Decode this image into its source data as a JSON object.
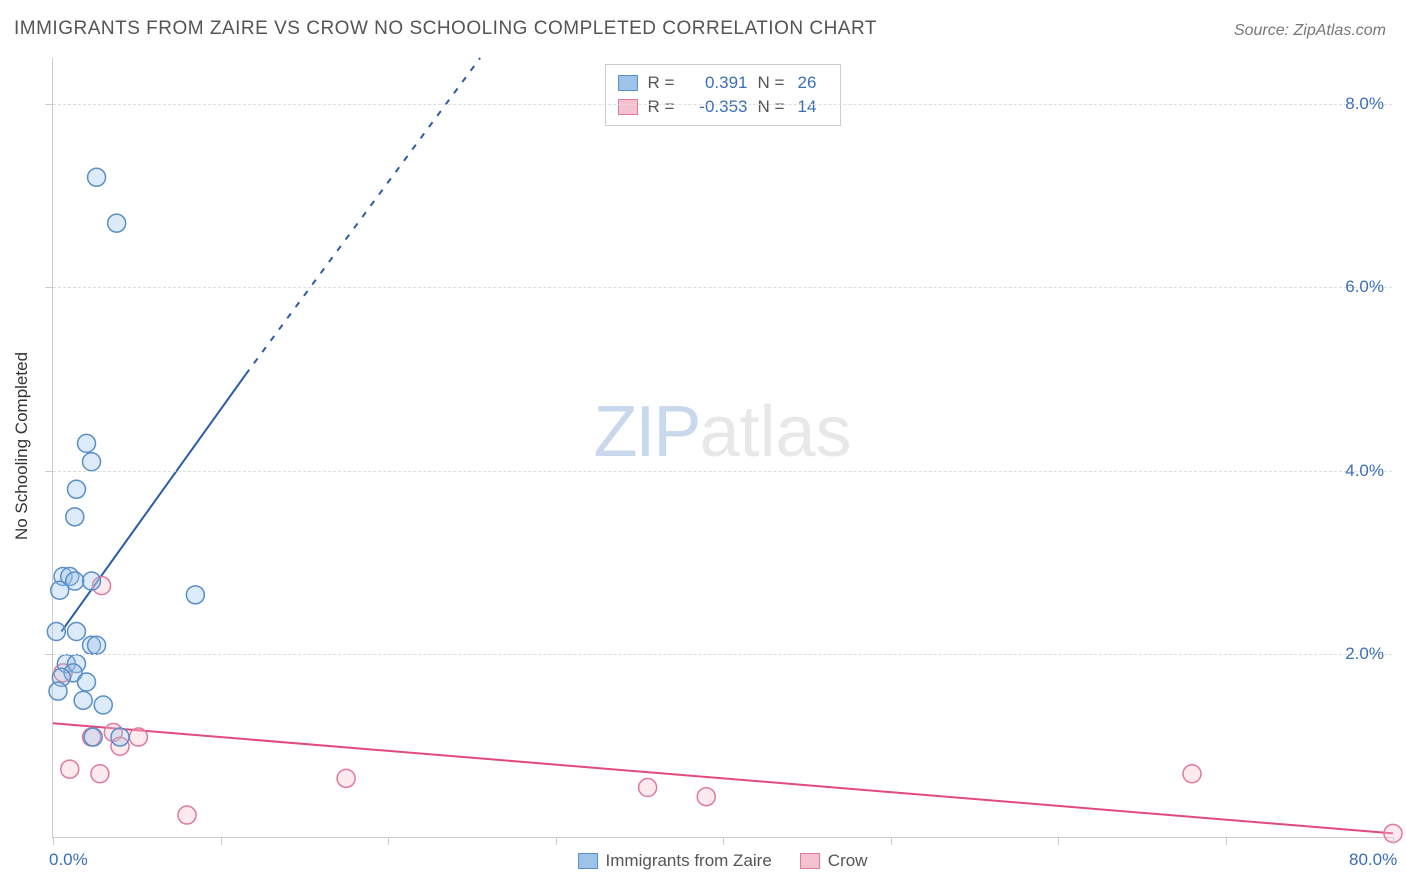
{
  "title": "IMMIGRANTS FROM ZAIRE VS CROW NO SCHOOLING COMPLETED CORRELATION CHART",
  "source": "Source: ZipAtlas.com",
  "ylabel": "No Schooling Completed",
  "watermark_zip": "ZIP",
  "watermark_atlas": "atlas",
  "chart": {
    "type": "scatter",
    "background_color": "#ffffff",
    "grid_color": "#dddddd",
    "axis_color": "#cccccc",
    "tick_label_color": "#3b6fb5",
    "tick_fontsize": 17,
    "title_fontsize": 19,
    "title_color": "#555555",
    "xlim": [
      0,
      80
    ],
    "ylim": [
      0,
      8.5
    ],
    "x_ticks": [
      0,
      10,
      20,
      30,
      40,
      50,
      60,
      70,
      80
    ],
    "x_tick_labels": {
      "0": "0.0%",
      "80": "80.0%"
    },
    "y_ticks": [
      2,
      4,
      6,
      8
    ],
    "y_tick_labels": {
      "2": "2.0%",
      "4": "4.0%",
      "6": "6.0%",
      "8": "8.0%"
    },
    "marker_radius": 9,
    "marker_stroke_width": 1.5,
    "marker_fill_opacity": 0.35,
    "line_width": 2
  },
  "series": {
    "blue": {
      "label": "Immigrants from Zaire",
      "color_fill": "#9ec3e8",
      "color_stroke": "#5a8fc8",
      "line_color": "#2a5da8",
      "R_label": "R =",
      "R_value": "0.391",
      "N_label": "N =",
      "N_value": "26",
      "points": [
        [
          2.6,
          7.2
        ],
        [
          3.8,
          6.7
        ],
        [
          2.0,
          4.3
        ],
        [
          2.3,
          4.1
        ],
        [
          1.4,
          3.8
        ],
        [
          1.3,
          3.5
        ],
        [
          0.6,
          2.85
        ],
        [
          1.0,
          2.85
        ],
        [
          1.3,
          2.8
        ],
        [
          2.3,
          2.8
        ],
        [
          8.5,
          2.65
        ],
        [
          0.4,
          2.7
        ],
        [
          0.2,
          2.25
        ],
        [
          1.4,
          2.25
        ],
        [
          2.3,
          2.1
        ],
        [
          2.6,
          2.1
        ],
        [
          0.8,
          1.9
        ],
        [
          1.4,
          1.9
        ],
        [
          1.2,
          1.8
        ],
        [
          0.5,
          1.75
        ],
        [
          2.0,
          1.7
        ],
        [
          0.3,
          1.6
        ],
        [
          1.8,
          1.5
        ],
        [
          3.0,
          1.45
        ],
        [
          2.4,
          1.1
        ],
        [
          4.0,
          1.1
        ]
      ],
      "trend_solid": {
        "x1": 0.5,
        "y1": 2.25,
        "x2": 11.5,
        "y2": 5.05
      },
      "trend_dashed": {
        "x1": 11.5,
        "y1": 5.05,
        "x2": 25.5,
        "y2": 8.5
      }
    },
    "pink": {
      "label": "Crow",
      "color_fill": "#f5c2cf",
      "color_stroke": "#e07a9a",
      "line_color": "#e24a7a",
      "R_label": "R =",
      "R_value": "-0.353",
      "N_label": "N =",
      "N_value": "14",
      "points": [
        [
          0.6,
          1.8
        ],
        [
          2.9,
          2.75
        ],
        [
          2.3,
          1.1
        ],
        [
          3.6,
          1.15
        ],
        [
          4.0,
          1.0
        ],
        [
          5.1,
          1.1
        ],
        [
          1.0,
          0.75
        ],
        [
          2.8,
          0.7
        ],
        [
          17.5,
          0.65
        ],
        [
          8.0,
          0.25
        ],
        [
          35.5,
          0.55
        ],
        [
          39.0,
          0.45
        ],
        [
          68.0,
          0.7
        ],
        [
          80.0,
          0.05
        ]
      ],
      "trend_solid": {
        "x1": 0,
        "y1": 1.25,
        "x2": 80,
        "y2": 0.05
      }
    }
  },
  "legend_bottom": [
    {
      "key": "blue"
    },
    {
      "key": "pink"
    }
  ]
}
